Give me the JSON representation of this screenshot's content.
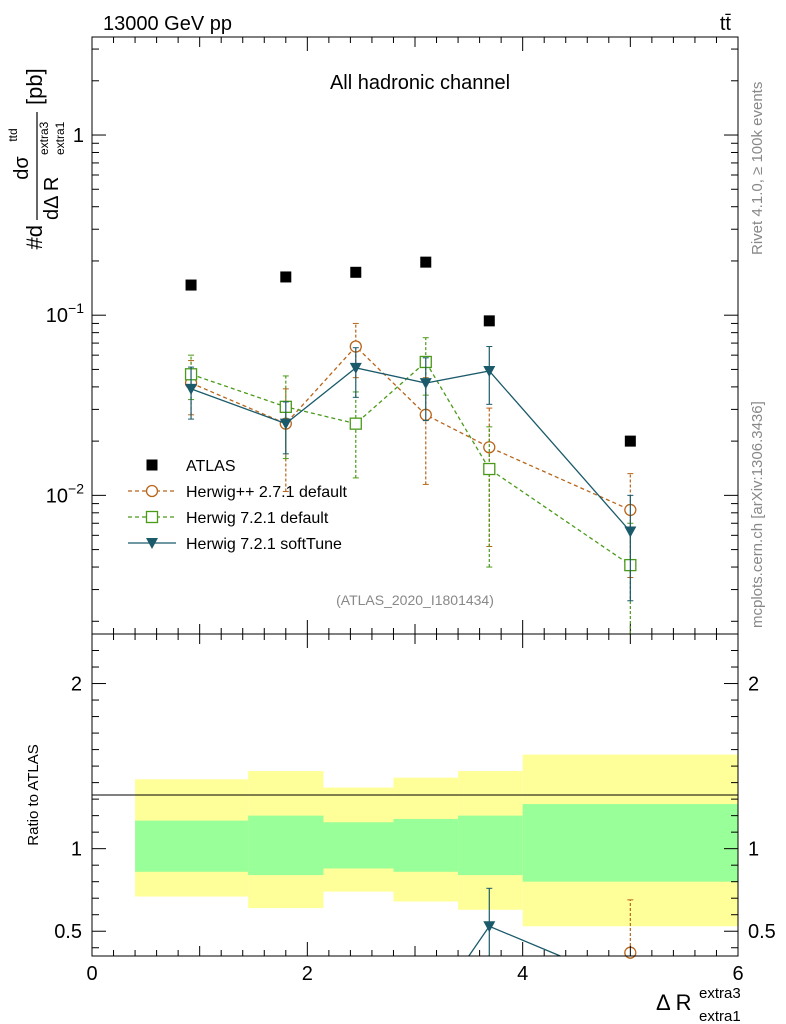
{
  "header": {
    "energy_label": "13000 GeV pp",
    "process_label": "tt̄"
  },
  "chart_data": [
    {
      "type": "scatter",
      "title": "All hadronic channel",
      "ylabel_main": "#d",
      "ylabel_num": "dσ",
      "ylabel_num_sup": "ttd",
      "ylabel_den": "dΔ R",
      "ylabel_den_sub": "extra1",
      "ylabel_den_sup": "extra3",
      "ylabel_unit": "[pb]",
      "yscale": "log",
      "xlim": [
        0,
        6
      ],
      "ylim": [
        0.0017,
        3.5
      ],
      "yticks": [
        {
          "value": 0.01,
          "base": "10",
          "exp": "−2"
        },
        {
          "value": 0.1,
          "base": "10",
          "exp": "−1"
        },
        {
          "value": 1,
          "base": "1",
          "exp": ""
        }
      ],
      "legend_position": "lower-left",
      "series": [
        {
          "name": "ATLAS",
          "marker": "square-filled",
          "color": "#000000",
          "x": [
            0.92,
            1.8,
            2.45,
            3.1,
            3.69,
            5.0
          ],
          "y": [
            0.147,
            0.163,
            0.173,
            0.197,
            0.093,
            0.02
          ]
        },
        {
          "name": "Herwig++ 2.7.1 default",
          "marker": "circle-open",
          "color": "#b8651b",
          "dash": "4,3",
          "x": [
            0.92,
            1.8,
            2.45,
            3.1,
            3.69,
            5.0
          ],
          "y": [
            0.042,
            0.025,
            0.067,
            0.028,
            0.0185,
            0.0083
          ],
          "yerr_low": [
            0.028,
            0.0105,
            0.045,
            0.0115,
            0.0052,
            0.0035
          ],
          "yerr_high": [
            0.056,
            0.039,
            0.09,
            0.045,
            0.0305,
            0.0132
          ]
        },
        {
          "name": "Herwig 7.2.1 default",
          "marker": "square-open",
          "color": "#4a9a1a",
          "dash": "4,3",
          "x": [
            0.92,
            1.8,
            2.45,
            3.1,
            3.69,
            5.0
          ],
          "y": [
            0.047,
            0.031,
            0.025,
            0.055,
            0.014,
            0.0041
          ],
          "yerr_low": [
            0.034,
            0.016,
            0.0125,
            0.036,
            0.004,
            0.0012
          ],
          "yerr_high": [
            0.06,
            0.046,
            0.0375,
            0.075,
            0.024,
            0.007
          ]
        },
        {
          "name": "Herwig 7.2.1 softTune",
          "marker": "triangle-down",
          "color": "#1a5a6a",
          "dash": "",
          "x": [
            0.92,
            1.8,
            2.45,
            3.1,
            3.69,
            5.0
          ],
          "y": [
            0.039,
            0.025,
            0.051,
            0.042,
            0.049,
            0.0063
          ],
          "yerr_low": [
            0.0265,
            0.017,
            0.035,
            0.026,
            0.032,
            0.0026
          ],
          "yerr_high": [
            0.0515,
            0.033,
            0.066,
            0.058,
            0.067,
            0.01
          ]
        }
      ],
      "watermark": "(ATLAS_2020_I1801434)"
    },
    {
      "type": "scatter",
      "ylabel": "Ratio to ATLAS",
      "xlabel": "Δ R",
      "xlabel_sub": "extra1",
      "xlabel_sup": "extra3",
      "xlim": [
        0,
        6
      ],
      "ylim": [
        0.35,
        2.3
      ],
      "yticks": [
        {
          "value": 0.5,
          "label": "0.5"
        },
        {
          "value": 1,
          "label": "1"
        },
        {
          "value": 2,
          "label": "2"
        }
      ],
      "xticks": [
        {
          "value": 0,
          "label": "0"
        },
        {
          "value": 2,
          "label": "2"
        },
        {
          "value": 4,
          "label": "4"
        },
        {
          "value": 6,
          "label": "6"
        }
      ],
      "bands": {
        "bins": [
          [
            0.4,
            1.45
          ],
          [
            1.45,
            2.15
          ],
          [
            2.15,
            2.8
          ],
          [
            2.8,
            3.4
          ],
          [
            3.4,
            4.0
          ],
          [
            4.0,
            6.0
          ]
        ],
        "yellow_low": [
          0.71,
          0.64,
          0.74,
          0.68,
          0.63,
          0.53
        ],
        "yellow_high": [
          1.42,
          1.47,
          1.37,
          1.43,
          1.47,
          1.57
        ],
        "green_low": [
          0.86,
          0.84,
          0.88,
          0.86,
          0.84,
          0.8
        ],
        "green_high": [
          1.17,
          1.2,
          1.16,
          1.18,
          1.2,
          1.27
        ]
      },
      "series": [
        {
          "name": "softTune ratio",
          "color": "#1a5a6a",
          "x": [
            3.5,
            3.69,
            4.35
          ],
          "y": [
            0.35,
            0.53,
            0.35
          ],
          "point_x": 3.69,
          "point_y": 0.53,
          "point_err_low": 0.35,
          "point_err_high": 0.76
        },
        {
          "name": "Herwig++ ratio",
          "color": "#b8651b",
          "point_x": 5.0,
          "point_y": 0.37,
          "point_err_low": 0.35,
          "point_err_high": 0.69
        }
      ]
    }
  ],
  "side_text": {
    "rivet": "Rivet 4.1.0, ≥ 100k events",
    "mcplots": "mcplots.cern.ch [arXiv:1306.3436]"
  }
}
